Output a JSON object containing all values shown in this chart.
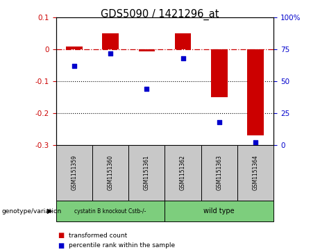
{
  "title": "GDS5090 / 1421296_at",
  "samples": [
    "GSM1151359",
    "GSM1151360",
    "GSM1151361",
    "GSM1151362",
    "GSM1151363",
    "GSM1151364"
  ],
  "bar_values": [
    0.01,
    0.05,
    -0.005,
    0.05,
    -0.15,
    -0.27
  ],
  "scatter_values": [
    62,
    72,
    44,
    68,
    18,
    2
  ],
  "ylim_left": [
    -0.3,
    0.1
  ],
  "ylim_right": [
    0,
    100
  ],
  "yticks_left": [
    -0.3,
    -0.2,
    -0.1,
    0.0,
    0.1
  ],
  "yticks_right": [
    0,
    25,
    50,
    75,
    100
  ],
  "bar_color": "#cc0000",
  "scatter_color": "#0000cc",
  "ref_line_color": "#cc0000",
  "dotted_line_color": "#000000",
  "group1_label": "cystatin B knockout Cstb-/-",
  "group2_label": "wild type",
  "group1_color": "#7dce7d",
  "group2_color": "#7dce7d",
  "genotype_label": "genotype/variation",
  "legend_bar_label": "transformed count",
  "legend_scatter_label": "percentile rank within the sample",
  "bar_width": 0.45,
  "sample_box_color": "#c8c8c8"
}
